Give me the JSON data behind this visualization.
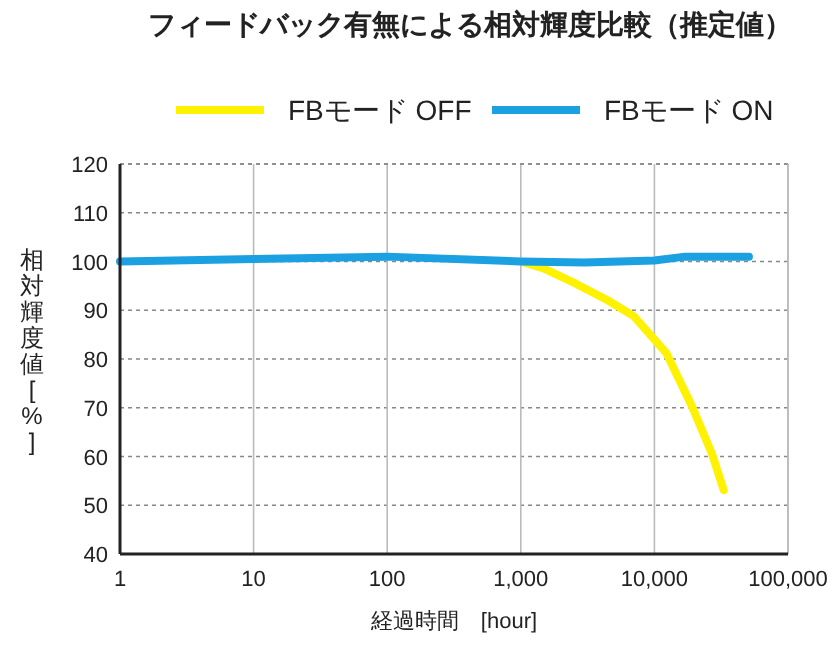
{
  "chart_data": {
    "type": "line",
    "title": "フィードバック有無による相対輝度比較（推定値）",
    "xlabel": "経過時間　[hour]",
    "ylabel": "相対輝度値[%]",
    "log": "x",
    "xlim": [
      1,
      100000
    ],
    "xticks": [
      1,
      10,
      100,
      {
        "value": 1000,
        "label": "1,000"
      },
      {
        "value": 10000,
        "label": "10,000"
      },
      {
        "value": 100000,
        "label": "100,000"
      }
    ],
    "ylim": [
      40,
      120
    ],
    "yticks": [
      40,
      50,
      60,
      70,
      80,
      90,
      100,
      110,
      120
    ],
    "grid": true,
    "legend": "top",
    "marker": "none",
    "line_style": "solid",
    "series": [
      {
        "name": "FBモード OFF",
        "color": "#fff200",
        "x": [
          1000,
          1480,
          2560,
          4500,
          7000,
          12300,
          19100,
          27000,
          33000
        ],
        "values": [
          100,
          98.6,
          95.5,
          92,
          88.8,
          81.2,
          70.3,
          60.5,
          53.1
        ]
      },
      {
        "name": "FBモード ON",
        "color": "#1ba1e2",
        "x": [
          1,
          10,
          100,
          1000,
          3000,
          10000,
          17000,
          51000
        ],
        "values": [
          100,
          100.5,
          101,
          100,
          99.8,
          100.2,
          101,
          101
        ]
      }
    ]
  }
}
